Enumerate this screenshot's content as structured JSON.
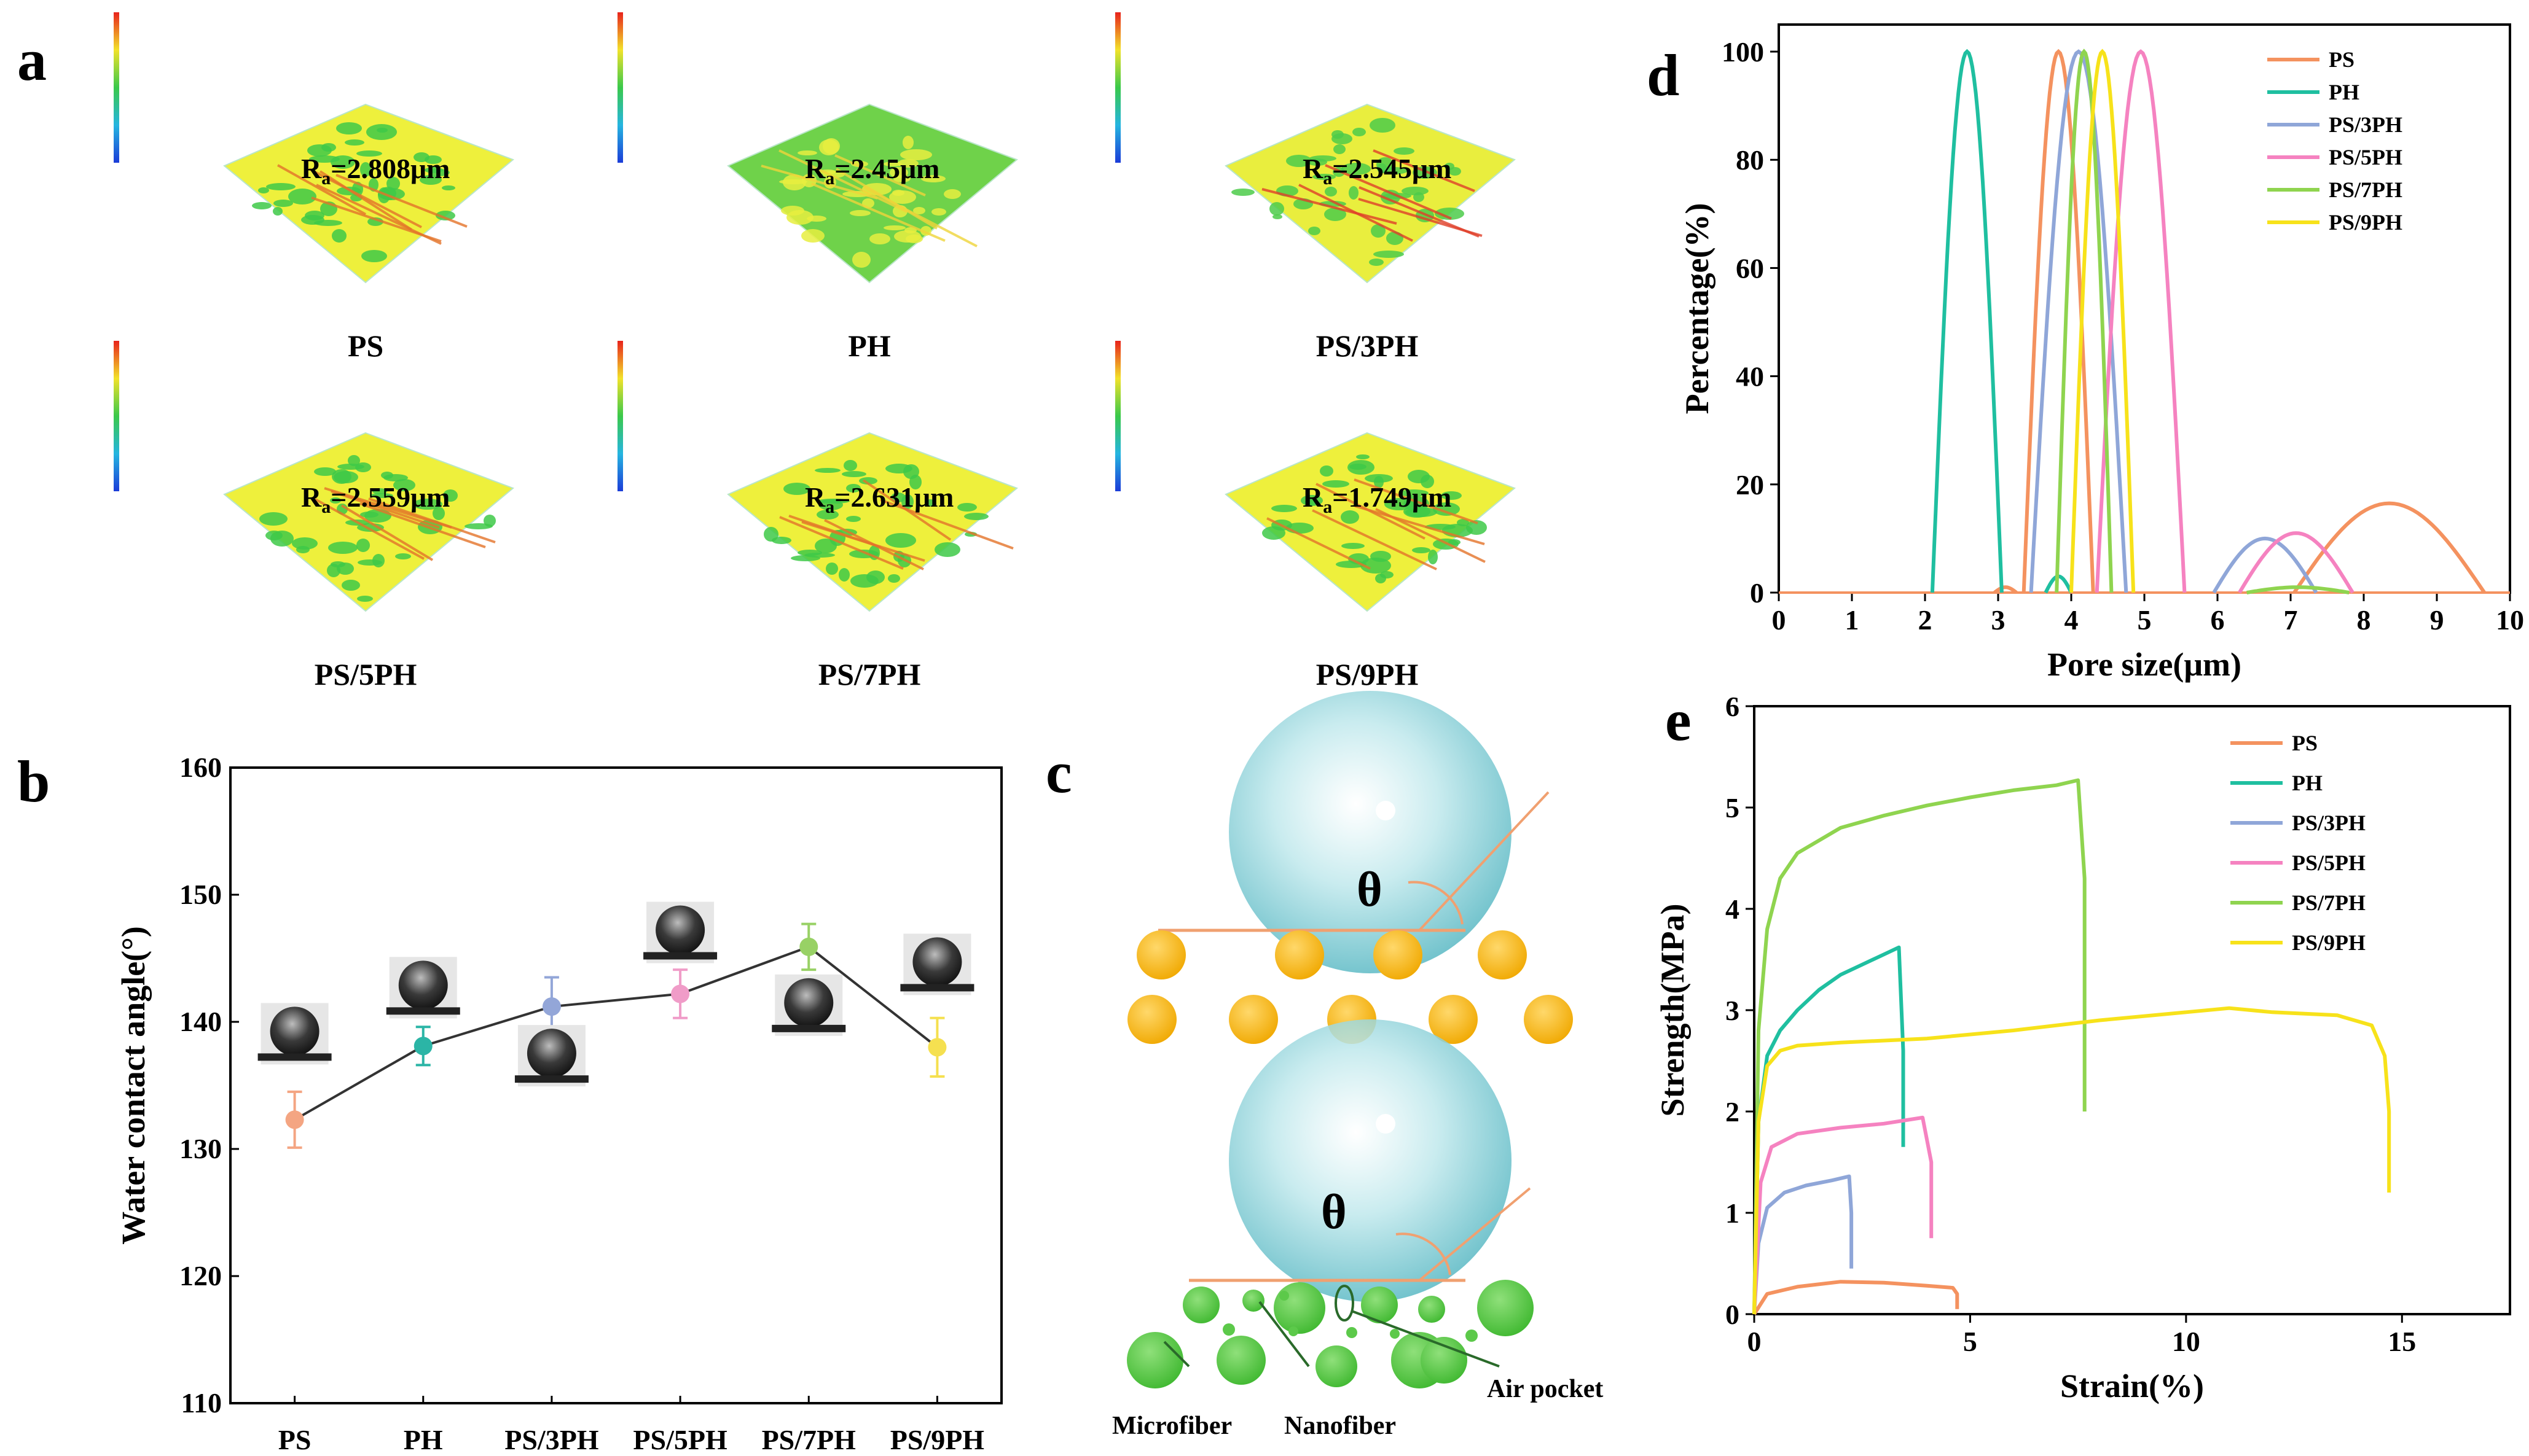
{
  "panels": {
    "a": "a",
    "b": "b",
    "c": "c",
    "d": "d",
    "e": "e"
  },
  "surfaces": [
    {
      "name": "PS",
      "ra": "R",
      "ra_sub": "a",
      "ra_value": "=2.808μm",
      "style": "yellow"
    },
    {
      "name": "PH",
      "ra": "R",
      "ra_sub": "a",
      "ra_value": "=2.45μm",
      "style": "green"
    },
    {
      "name": "PS/3PH",
      "ra": "R",
      "ra_sub": "a",
      "ra_value": "=2.545μm",
      "style": "redstreak"
    },
    {
      "name": "PS/5PH",
      "ra": "R",
      "ra_sub": "a",
      "ra_value": "=2.559μm",
      "style": "yellow"
    },
    {
      "name": "PS/7PH",
      "ra": "R",
      "ra_sub": "a",
      "ra_value": "=2.631μm",
      "style": "yellow"
    },
    {
      "name": "PS/9PH",
      "ra": "R",
      "ra_sub": "a",
      "ra_value": "=1.749μm",
      "style": "yellow"
    }
  ],
  "diagram_c": {
    "theta": "θ",
    "labels": {
      "microfiber": "Microfiber",
      "nanofiber": "Nanofiber",
      "air_pocket": "Air pocket"
    },
    "colors": {
      "droplet": "#7fcfd6",
      "fiber_top": "#f5b818",
      "fiber_bottom": "#5cc94a",
      "line": "#f0a070"
    }
  },
  "chart_data": [
    {
      "id": "b",
      "type": "scatter",
      "ylabel": "Water contact angle(°)",
      "categories": [
        "PS",
        "PH",
        "PS/3PH",
        "PS/5PH",
        "PS/7PH",
        "PS/9PH"
      ],
      "values": [
        132.3,
        138.1,
        141.2,
        142.2,
        145.9,
        138.0
      ],
      "errors": [
        2.2,
        1.5,
        2.3,
        1.9,
        1.8,
        2.3
      ],
      "colors": [
        "#f4a582",
        "#2bb5a6",
        "#93a6d8",
        "#f09cc8",
        "#98d165",
        "#f5e050"
      ],
      "yticks": [
        110,
        120,
        130,
        140,
        150,
        160
      ],
      "ylim": [
        110,
        160
      ]
    },
    {
      "id": "d",
      "type": "line",
      "xlabel": "Pore size(μm)",
      "ylabel": "Percentage(%)",
      "xlim": [
        0,
        10
      ],
      "ylim": [
        0,
        105
      ],
      "xticks": [
        0,
        1,
        2,
        3,
        4,
        5,
        6,
        7,
        8,
        9,
        10
      ],
      "yticks": [
        0,
        20,
        40,
        60,
        80,
        100
      ],
      "legend_position": "top-right",
      "series": [
        {
          "name": "PS",
          "color": "#f4925f",
          "peaks": [
            [
              2.95,
              3.25,
              1
            ],
            [
              3.35,
              4.3,
              100
            ],
            [
              7.05,
              9.65,
              16.5
            ]
          ]
        },
        {
          "name": "PH",
          "color": "#1fbfa0",
          "peaks": [
            [
              2.1,
              3.05,
              100
            ],
            [
              3.65,
              4.0,
              3
            ]
          ]
        },
        {
          "name": "PS/3PH",
          "color": "#8fa6d8",
          "peaks": [
            [
              3.45,
              4.75,
              100
            ],
            [
              5.95,
              7.35,
              10
            ]
          ]
        },
        {
          "name": "PS/5PH",
          "color": "#f582c0",
          "peaks": [
            [
              4.35,
              5.55,
              100
            ],
            [
              6.3,
              7.85,
              11
            ]
          ]
        },
        {
          "name": "PS/7PH",
          "color": "#8fd44f",
          "peaks": [
            [
              3.8,
              4.55,
              100
            ],
            [
              6.4,
              7.8,
              1
            ]
          ]
        },
        {
          "name": "PS/9PH",
          "color": "#f7e21a",
          "peaks": [
            [
              4.0,
              4.85,
              100
            ]
          ]
        }
      ]
    },
    {
      "id": "e",
      "type": "line",
      "xlabel": "Strain(%)",
      "ylabel": "Strength(MPa)",
      "xlim": [
        0,
        17.5
      ],
      "ylim": [
        0,
        6
      ],
      "xticks": [
        0,
        5,
        10,
        15
      ],
      "yticks": [
        0,
        1,
        2,
        3,
        4,
        5,
        6
      ],
      "legend_position": "top-right",
      "series": [
        {
          "name": "PS",
          "color": "#f4925f",
          "x": [
            0,
            0.3,
            1.0,
            2.0,
            3.0,
            4.0,
            4.6,
            4.7,
            4.7
          ],
          "y": [
            0,
            0.2,
            0.27,
            0.32,
            0.31,
            0.28,
            0.26,
            0.2,
            0.05
          ]
        },
        {
          "name": "PH",
          "color": "#1fbfa0",
          "x": [
            0,
            0.1,
            0.3,
            0.6,
            1.0,
            1.5,
            2.0,
            2.5,
            3.0,
            3.35,
            3.45,
            3.45
          ],
          "y": [
            0,
            1.9,
            2.55,
            2.8,
            3.0,
            3.2,
            3.35,
            3.45,
            3.55,
            3.62,
            2.6,
            1.65
          ]
        },
        {
          "name": "PS/3PH",
          "color": "#8fa6d8",
          "x": [
            0,
            0.1,
            0.3,
            0.7,
            1.2,
            1.8,
            2.2,
            2.25,
            2.25
          ],
          "y": [
            0,
            0.7,
            1.05,
            1.2,
            1.27,
            1.32,
            1.36,
            1.0,
            0.45
          ]
        },
        {
          "name": "PS/5PH",
          "color": "#f582c0",
          "x": [
            0,
            0.15,
            0.4,
            1.0,
            2.0,
            3.0,
            3.9,
            4.1,
            4.1
          ],
          "y": [
            0,
            1.3,
            1.65,
            1.78,
            1.84,
            1.88,
            1.94,
            1.5,
            0.75
          ]
        },
        {
          "name": "PS/7PH",
          "color": "#8fd44f",
          "x": [
            0,
            0.1,
            0.3,
            0.6,
            1.0,
            2.0,
            3.0,
            4.0,
            5.0,
            6.0,
            7.0,
            7.5,
            7.65,
            7.65
          ],
          "y": [
            0,
            2.8,
            3.8,
            4.3,
            4.55,
            4.8,
            4.92,
            5.02,
            5.1,
            5.17,
            5.22,
            5.27,
            4.3,
            2.0
          ]
        },
        {
          "name": "PS/9PH",
          "color": "#f7e21a",
          "x": [
            0,
            0.1,
            0.3,
            0.6,
            1.0,
            2.0,
            4.0,
            6.0,
            8.0,
            10.0,
            11.0,
            12.0,
            13.5,
            14.3,
            14.6,
            14.7,
            14.7
          ],
          "y": [
            0,
            1.9,
            2.45,
            2.6,
            2.65,
            2.68,
            2.72,
            2.8,
            2.9,
            2.98,
            3.02,
            2.98,
            2.95,
            2.85,
            2.55,
            2.0,
            1.2
          ]
        }
      ]
    }
  ]
}
